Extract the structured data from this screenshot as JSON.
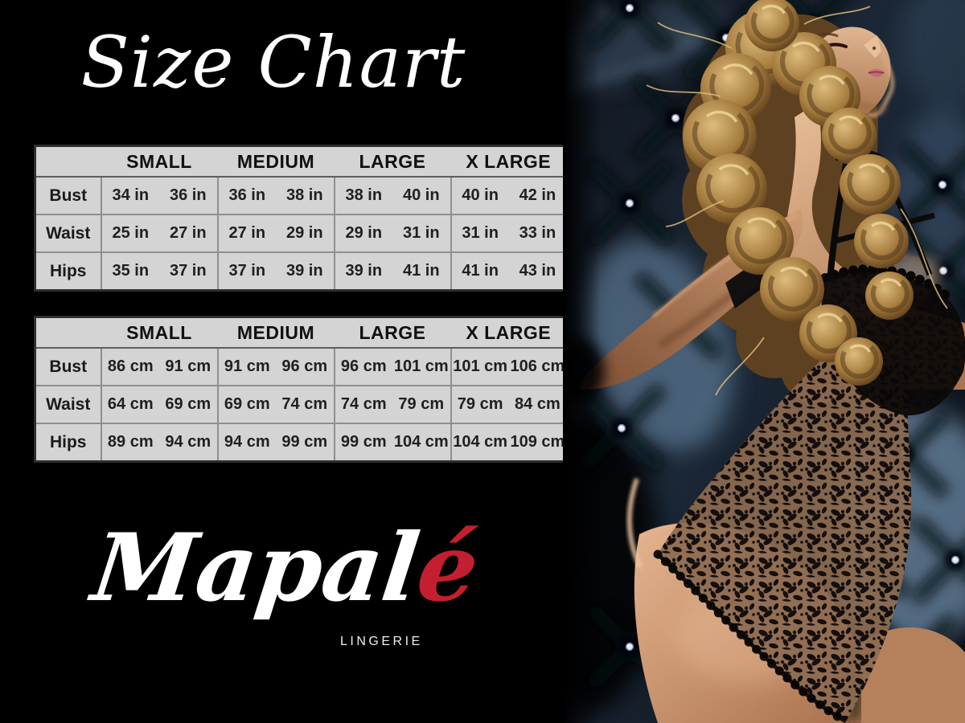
{
  "title": "Size Chart",
  "brand": {
    "name_white": "Mapal",
    "name_red": "é",
    "tagline": "LINGERIE"
  },
  "tables": [
    {
      "id": "inches",
      "columns": [
        "SMALL",
        "MEDIUM",
        "LARGE",
        "X LARGE"
      ],
      "rows": [
        {
          "label": "Bust",
          "pairs": [
            [
              "34 in",
              "36 in"
            ],
            [
              "36 in",
              "38 in"
            ],
            [
              "38 in",
              "40 in"
            ],
            [
              "40 in",
              "42 in"
            ]
          ]
        },
        {
          "label": "Waist",
          "pairs": [
            [
              "25 in",
              "27 in"
            ],
            [
              "27 in",
              "29 in"
            ],
            [
              "29 in",
              "31 in"
            ],
            [
              "31 in",
              "33 in"
            ]
          ]
        },
        {
          "label": "Hips",
          "pairs": [
            [
              "35 in",
              "37 in"
            ],
            [
              "37 in",
              "39 in"
            ],
            [
              "39 in",
              "41 in"
            ],
            [
              "41 in",
              "43 in"
            ]
          ]
        }
      ]
    },
    {
      "id": "centimeters",
      "columns": [
        "SMALL",
        "MEDIUM",
        "LARGE",
        "X LARGE"
      ],
      "rows": [
        {
          "label": "Bust",
          "pairs": [
            [
              "86 cm",
              "91 cm"
            ],
            [
              "91 cm",
              "96 cm"
            ],
            [
              "96 cm",
              "101 cm"
            ],
            [
              "101 cm",
              "106 cm"
            ]
          ]
        },
        {
          "label": "Waist",
          "pairs": [
            [
              "64 cm",
              "69 cm"
            ],
            [
              "69 cm",
              "74 cm"
            ],
            [
              "74 cm",
              "79 cm"
            ],
            [
              "79 cm",
              "84 cm"
            ]
          ]
        },
        {
          "label": "Hips",
          "pairs": [
            [
              "89 cm",
              "94 cm"
            ],
            [
              "94 cm",
              "99 cm"
            ],
            [
              "99 cm",
              "104 cm"
            ],
            [
              "104 cm",
              "109 cm"
            ]
          ]
        }
      ]
    }
  ],
  "colors": {
    "background": "#000000",
    "table_background": "#d4d4d4",
    "table_text": "#1a1a1a",
    "table_grid": "#8f8f8f",
    "title_text": "#ffffff",
    "brand_white": "#ffffff",
    "brand_red": "#c41f30",
    "tagline_text": "#efefef",
    "leather_blue": "#31455e",
    "skin_tone": "#c08c66",
    "hair_gold": "#c9a160"
  }
}
